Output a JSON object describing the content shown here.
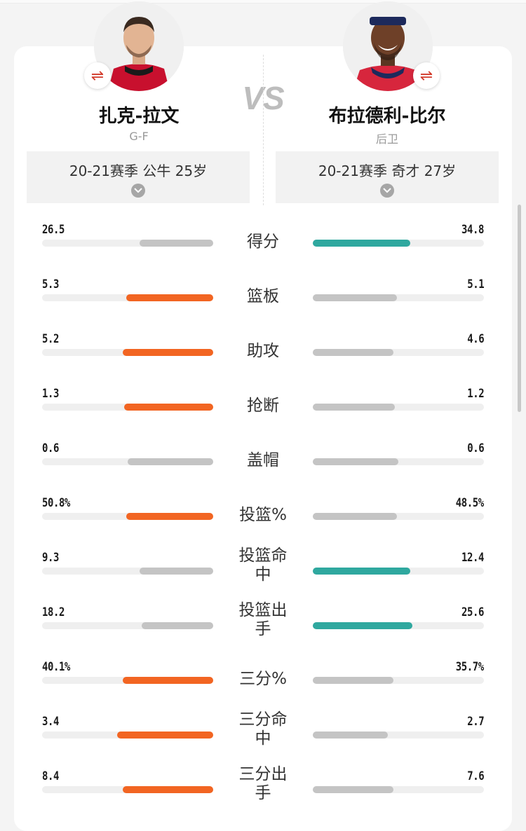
{
  "left_player": {
    "name": "扎克-拉文",
    "position": "G-F",
    "season": "20-21赛季 公牛 25岁",
    "jersey_color": "#c8102e"
  },
  "right_player": {
    "name": "布拉德利-比尔",
    "position": "后卫",
    "season": "20-21赛季 奇才 27岁",
    "jersey_color": "#d7263d"
  },
  "vs_label": "VS",
  "swap_icon": "⇌",
  "colors": {
    "orange": "#f26522",
    "teal": "#2fa89f",
    "gray": "#c4c4c4",
    "track": "#efefef"
  },
  "stats": [
    {
      "label": "得分",
      "left": "26.5",
      "right": "34.8",
      "left_pct": 0.43,
      "right_pct": 0.57,
      "leader": "right"
    },
    {
      "label": "篮板",
      "left": "5.3",
      "right": "5.1",
      "left_pct": 0.51,
      "right_pct": 0.49,
      "leader": "left"
    },
    {
      "label": "助攻",
      "left": "5.2",
      "right": "4.6",
      "left_pct": 0.53,
      "right_pct": 0.47,
      "leader": "left"
    },
    {
      "label": "抢断",
      "left": "1.3",
      "right": "1.2",
      "left_pct": 0.52,
      "right_pct": 0.48,
      "leader": "left"
    },
    {
      "label": "盖帽",
      "left": "0.6",
      "right": "0.6",
      "left_pct": 0.5,
      "right_pct": 0.5,
      "leader": "none"
    },
    {
      "label": "投篮%",
      "left": "50.8%",
      "right": "48.5%",
      "left_pct": 0.51,
      "right_pct": 0.49,
      "leader": "left"
    },
    {
      "label": "投篮命中",
      "left": "9.3",
      "right": "12.4",
      "left_pct": 0.43,
      "right_pct": 0.57,
      "leader": "right"
    },
    {
      "label": "投篮出手",
      "left": "18.2",
      "right": "25.6",
      "left_pct": 0.42,
      "right_pct": 0.58,
      "leader": "right"
    },
    {
      "label": "三分%",
      "left": "40.1%",
      "right": "35.7%",
      "left_pct": 0.53,
      "right_pct": 0.47,
      "leader": "left"
    },
    {
      "label": "三分命中",
      "left": "3.4",
      "right": "2.7",
      "left_pct": 0.56,
      "right_pct": 0.44,
      "leader": "left"
    },
    {
      "label": "三分出手",
      "left": "8.4",
      "right": "7.6",
      "left_pct": 0.53,
      "right_pct": 0.47,
      "leader": "left"
    }
  ]
}
